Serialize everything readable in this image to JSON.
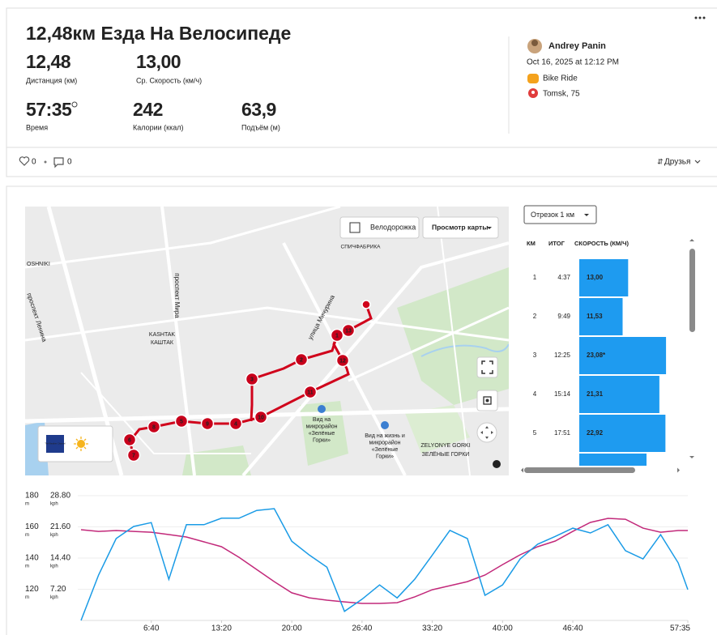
{
  "header": {
    "title": "12,48км Езда На Велосипеде",
    "stats": [
      {
        "value": "12,48",
        "label": "Дистанция (км)"
      },
      {
        "value": "13,00",
        "label": "Ср. Скорость (км/ч)"
      },
      {
        "value": "57:35",
        "label": "Время"
      },
      {
        "value": "242",
        "label": "Калории (ккал)"
      },
      {
        "value": "63,9",
        "label": "Подъём (м)"
      }
    ]
  },
  "athlete": {
    "name": "Andrey Panin",
    "date": "Oct 16, 2025 at 12:12 PM",
    "activity": "Bike Ride",
    "location": "Tomsk, 75"
  },
  "social": {
    "likes": "0",
    "comments": "0",
    "visibility": "Друзья"
  },
  "map": {
    "bike_lane": "Велодорожка",
    "view": "Просмотр карты",
    "weather_logo": "The Weather Channel",
    "labels": [
      "OSHNIKI",
      "проспект Ленина",
      "проспект Мира",
      "KASHTAK",
      "КАШТАК",
      "улица Мичурина",
      "СПИЧФАБРИКА",
      "ZELYONYE GORKI",
      "ЗЕЛЁНЫЕ ГОРКИ"
    ],
    "pois": [
      [
        "Вид на",
        "микрорайон",
        "«Зелёные",
        "Горки»"
      ],
      [
        "Вид на жизнь и",
        "микрорайон",
        "«Зелёные",
        "Горки»"
      ]
    ],
    "markers": [
      "1",
      "2",
      "3",
      "4",
      "5",
      "6",
      "7",
      "8",
      "9",
      "10",
      "11",
      "12",
      "13"
    ]
  },
  "splits": {
    "selector": "Отрезок 1 км",
    "columns": [
      "КМ",
      "ИТОГ",
      "СКОРОСТЬ (КМ/Ч)"
    ],
    "km": [
      "1",
      "2",
      "3",
      "4",
      "5"
    ],
    "times": [
      "4:37",
      "9:49",
      "12:25",
      "15:14",
      "17:51"
    ],
    "speeds": [
      13.0,
      11.53,
      23.08,
      21.31,
      22.92
    ],
    "speed_labels": [
      "13,00",
      "11,53",
      "23,08*",
      "21,31",
      "22,92"
    ]
  },
  "chart_data": {
    "type": "line",
    "x": [
      0,
      100,
      200,
      300,
      400,
      500,
      600,
      700,
      800,
      900,
      1000,
      1100,
      1200,
      1300,
      1400,
      1500,
      1600,
      1700,
      1800,
      1900,
      2000,
      2100,
      2200,
      2300,
      2400,
      2500,
      2600,
      2700,
      2800,
      2900,
      3000,
      3100,
      3200,
      3300,
      3400,
      3455
    ],
    "xlim": [
      0,
      3455
    ],
    "xticks": [
      {
        "value": 400,
        "label": "6:40"
      },
      {
        "value": 800,
        "label": "13:20"
      },
      {
        "value": 1200,
        "label": "20:00"
      },
      {
        "value": 1600,
        "label": "26:40"
      },
      {
        "value": 2000,
        "label": "33:20"
      },
      {
        "value": 2400,
        "label": "40:00"
      },
      {
        "value": 2800,
        "label": "46:40"
      },
      {
        "value": 3455,
        "label": "57:35"
      }
    ],
    "ylim": [
      100,
      187.3
    ],
    "yticks": [
      120,
      140,
      160,
      180
    ],
    "y_unit": "m",
    "y2lim": [
      0,
      31.42
    ],
    "y2ticks": [
      {
        "value": 7.2,
        "label": "7.20"
      },
      {
        "value": 14.4,
        "label": "14.40"
      },
      {
        "value": 21.6,
        "label": "21.60"
      },
      {
        "value": 28.8,
        "label": "28.80"
      }
    ],
    "y2_unit": "kph",
    "grid": true,
    "series": [
      {
        "color": "#c2297a",
        "values": [
          158.2,
          157.1,
          157.7,
          157.1,
          156.6,
          155.1,
          153.5,
          150.4,
          147.3,
          140.5,
          132.7,
          124.9,
          117.7,
          114.5,
          113.0,
          111.9,
          110.9,
          110.9,
          111.4,
          115.1,
          119.7,
          122.3,
          124.9,
          129.1,
          135.8,
          142.1,
          147.3,
          150.9,
          157.1,
          162.9,
          165.5,
          164.9,
          159.2,
          156.6,
          157.7,
          157.7
        ]
      },
      {
        "color": "#1a9be6",
        "axis": "y2",
        "values": [
          0,
          10.5,
          18.9,
          21.7,
          22.6,
          9.5,
          22.1,
          22.1,
          23.6,
          23.6,
          25.4,
          25.8,
          18.3,
          15.1,
          12.3,
          2.1,
          4.9,
          8.2,
          5.2,
          9.5,
          15.1,
          20.8,
          18.9,
          5.8,
          8.2,
          14.2,
          17.6,
          19.4,
          21.3,
          20.2,
          22.1,
          16.1,
          14.2,
          19.8,
          13.3,
          7.1
        ]
      }
    ]
  }
}
